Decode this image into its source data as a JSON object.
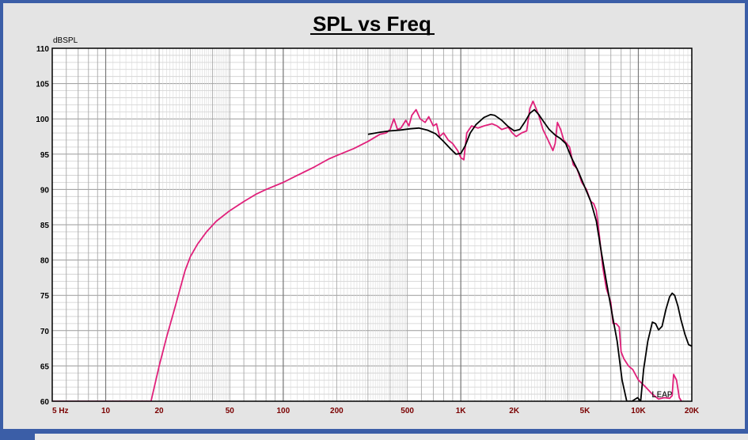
{
  "chart_data": {
    "type": "line",
    "title": "SPL vs Freq",
    "ylabel": "dBSPL",
    "xlabel": "",
    "x_scale": "log",
    "xlim": [
      5,
      20000
    ],
    "ylim": [
      60,
      110
    ],
    "grid": true,
    "x_tick_labels": [
      {
        "value": 5,
        "label": "5 Hz"
      },
      {
        "value": 10,
        "label": "10"
      },
      {
        "value": 20,
        "label": "20"
      },
      {
        "value": 50,
        "label": "50"
      },
      {
        "value": 100,
        "label": "100"
      },
      {
        "value": 200,
        "label": "200"
      },
      {
        "value": 500,
        "label": "500"
      },
      {
        "value": 1000,
        "label": "1K"
      },
      {
        "value": 2000,
        "label": "2K"
      },
      {
        "value": 5000,
        "label": "5K"
      },
      {
        "value": 10000,
        "label": "10K"
      },
      {
        "value": 20000,
        "label": "20K"
      }
    ],
    "y_ticks": [
      60,
      65,
      70,
      75,
      80,
      85,
      90,
      95,
      100,
      105,
      110
    ],
    "watermark": "LEAP",
    "series": [
      {
        "color": "#e0207a",
        "points": [
          [
            5,
            60
          ],
          [
            18,
            60
          ],
          [
            20,
            65
          ],
          [
            22,
            69
          ],
          [
            25,
            74
          ],
          [
            28,
            78.5
          ],
          [
            30,
            80.5
          ],
          [
            33,
            82.3
          ],
          [
            37,
            84
          ],
          [
            42,
            85.5
          ],
          [
            50,
            87
          ],
          [
            60,
            88.3
          ],
          [
            70,
            89.3
          ],
          [
            80,
            90
          ],
          [
            100,
            91
          ],
          [
            120,
            92
          ],
          [
            150,
            93.2
          ],
          [
            180,
            94.3
          ],
          [
            200,
            94.8
          ],
          [
            250,
            95.8
          ],
          [
            300,
            96.8
          ],
          [
            350,
            97.8
          ],
          [
            380,
            98
          ],
          [
            400,
            98.5
          ],
          [
            420,
            100
          ],
          [
            440,
            98.5
          ],
          [
            460,
            98.7
          ],
          [
            490,
            99.8
          ],
          [
            510,
            99
          ],
          [
            530,
            100.5
          ],
          [
            560,
            101.3
          ],
          [
            590,
            100
          ],
          [
            630,
            99.5
          ],
          [
            660,
            100.3
          ],
          [
            700,
            99
          ],
          [
            730,
            99.3
          ],
          [
            760,
            97.5
          ],
          [
            800,
            98
          ],
          [
            850,
            97
          ],
          [
            900,
            96.5
          ],
          [
            960,
            95.5
          ],
          [
            1000,
            94.5
          ],
          [
            1040,
            94.2
          ],
          [
            1080,
            98
          ],
          [
            1150,
            99
          ],
          [
            1250,
            98.7
          ],
          [
            1350,
            99
          ],
          [
            1500,
            99.3
          ],
          [
            1600,
            99
          ],
          [
            1700,
            98.5
          ],
          [
            1850,
            98.8
          ],
          [
            1950,
            98
          ],
          [
            2050,
            97.5
          ],
          [
            2200,
            98
          ],
          [
            2350,
            98.3
          ],
          [
            2450,
            101.5
          ],
          [
            2550,
            102.5
          ],
          [
            2650,
            101.5
          ],
          [
            2750,
            100.5
          ],
          [
            2900,
            98.5
          ],
          [
            3100,
            97
          ],
          [
            3300,
            95.5
          ],
          [
            3400,
            96.5
          ],
          [
            3500,
            99.5
          ],
          [
            3650,
            98.5
          ],
          [
            3800,
            97
          ],
          [
            3950,
            96.5
          ],
          [
            4100,
            96
          ],
          [
            4300,
            93.5
          ],
          [
            4500,
            93
          ],
          [
            4800,
            91
          ],
          [
            5100,
            90
          ],
          [
            5400,
            88.3
          ],
          [
            5600,
            88
          ],
          [
            5800,
            87
          ],
          [
            6000,
            84
          ],
          [
            6300,
            79
          ],
          [
            6600,
            76
          ],
          [
            7000,
            74
          ],
          [
            7200,
            71
          ],
          [
            7500,
            71
          ],
          [
            7800,
            70.5
          ],
          [
            8000,
            67
          ],
          [
            8300,
            66
          ],
          [
            8800,
            65
          ],
          [
            9300,
            64.5
          ],
          [
            10000,
            63
          ],
          [
            11000,
            62
          ],
          [
            12000,
            61
          ],
          [
            13000,
            60.3
          ],
          [
            14000,
            60.5
          ],
          [
            15000,
            60.4
          ],
          [
            15500,
            60.8
          ],
          [
            15800,
            63.8
          ],
          [
            16400,
            63
          ],
          [
            17000,
            60.5
          ],
          [
            17500,
            60
          ]
        ]
      },
      {
        "color": "#000000",
        "points": [
          [
            300,
            97.8
          ],
          [
            350,
            98.1
          ],
          [
            400,
            98.3
          ],
          [
            450,
            98.4
          ],
          [
            520,
            98.6
          ],
          [
            580,
            98.7
          ],
          [
            650,
            98.4
          ],
          [
            720,
            97.9
          ],
          [
            800,
            96.8
          ],
          [
            880,
            95.7
          ],
          [
            940,
            95
          ],
          [
            1000,
            95.1
          ],
          [
            1060,
            96.2
          ],
          [
            1130,
            98
          ],
          [
            1220,
            99.2
          ],
          [
            1350,
            100.2
          ],
          [
            1470,
            100.6
          ],
          [
            1550,
            100.5
          ],
          [
            1700,
            99.8
          ],
          [
            1850,
            98.9
          ],
          [
            2000,
            98.3
          ],
          [
            2150,
            98.5
          ],
          [
            2300,
            99.6
          ],
          [
            2450,
            100.8
          ],
          [
            2600,
            101.3
          ],
          [
            2750,
            100.6
          ],
          [
            2950,
            99.5
          ],
          [
            3150,
            98.5
          ],
          [
            3400,
            97.7
          ],
          [
            3650,
            97.2
          ],
          [
            3900,
            96.5
          ],
          [
            4200,
            94.5
          ],
          [
            4600,
            92.5
          ],
          [
            5000,
            90.3
          ],
          [
            5400,
            88.3
          ],
          [
            5800,
            85.5
          ],
          [
            6200,
            81
          ],
          [
            6600,
            77
          ],
          [
            7100,
            72.5
          ],
          [
            7600,
            68.5
          ],
          [
            8100,
            63
          ],
          [
            8600,
            59.5
          ],
          [
            9200,
            59
          ],
          [
            9900,
            60.5
          ],
          [
            10300,
            60
          ],
          [
            10700,
            64.5
          ],
          [
            11300,
            68.5
          ],
          [
            12000,
            71.2
          ],
          [
            12500,
            71
          ],
          [
            13000,
            70.1
          ],
          [
            13600,
            70.6
          ],
          [
            14300,
            73
          ],
          [
            15000,
            74.8
          ],
          [
            15500,
            75.3
          ],
          [
            16000,
            75
          ],
          [
            16700,
            73.5
          ],
          [
            17400,
            71.5
          ],
          [
            18300,
            69.5
          ],
          [
            19200,
            68
          ],
          [
            20000,
            67.8
          ]
        ]
      }
    ]
  }
}
